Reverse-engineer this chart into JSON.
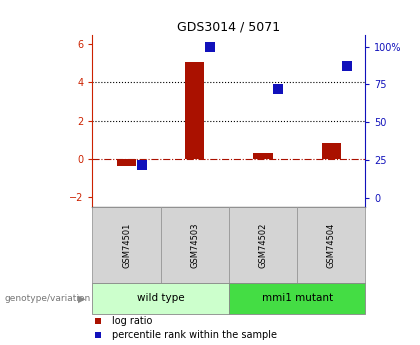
{
  "title": "GDS3014 / 5071",
  "samples": [
    "GSM74501",
    "GSM74503",
    "GSM74502",
    "GSM74504"
  ],
  "log_ratio": [
    -0.35,
    5.05,
    0.3,
    0.85
  ],
  "percentile_rank": [
    22,
    100,
    72,
    87
  ],
  "groups": [
    {
      "label": "wild type",
      "samples": [
        0,
        1
      ],
      "color": "#ccffcc"
    },
    {
      "label": "mmi1 mutant",
      "samples": [
        2,
        3
      ],
      "color": "#44dd44"
    }
  ],
  "ylim_left": [
    -2.5,
    6.5
  ],
  "ylim_right": [
    -5.95,
    108
  ],
  "yticks_left": [
    -2,
    0,
    2,
    4,
    6
  ],
  "yticks_right": [
    0,
    25,
    50,
    75,
    100
  ],
  "hlines_dotted": [
    2,
    4
  ],
  "hline_dashed": 0,
  "bar_color_red": "#aa1100",
  "bar_color_blue": "#1111bb",
  "tick_color_left": "#cc2200",
  "tick_color_right": "#1111bb",
  "label_log_ratio": "log ratio",
  "label_percentile": "percentile rank within the sample",
  "genotype_label": "genotype/variation",
  "bar_width": 0.28,
  "marker_size": 55
}
